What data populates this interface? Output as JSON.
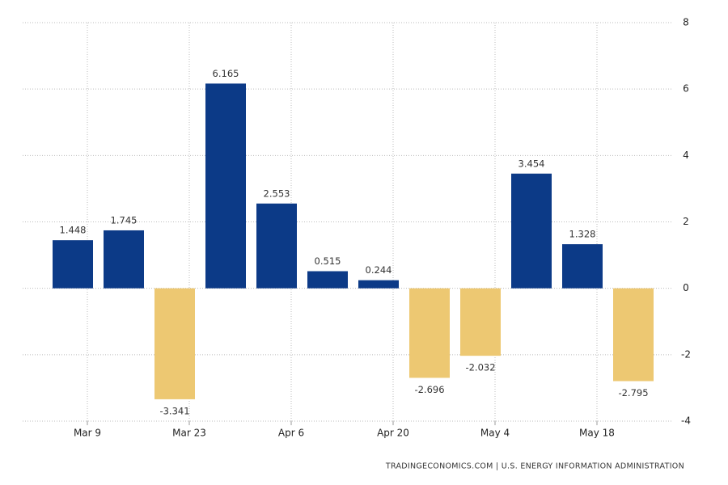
{
  "chart_data": {
    "type": "bar",
    "categories": [
      "Mar 9",
      null,
      "Mar 23",
      null,
      "Apr 6",
      null,
      "Apr 20",
      null,
      "May 4",
      null,
      "May 18",
      null
    ],
    "values": [
      1.448,
      1.745,
      -3.341,
      6.165,
      2.553,
      0.515,
      0.244,
      -2.696,
      -2.032,
      3.454,
      1.328,
      -2.795
    ],
    "color": "#0c3a87",
    "negative_color": "#edc872",
    "ylim": [
      -4,
      8
    ],
    "yticks": [
      -4,
      -2,
      0,
      2,
      4,
      6,
      8
    ],
    "grid": true,
    "source": "TRADINGECONOMICS.COM  |  U.S. ENERGY INFORMATION ADMINISTRATION"
  }
}
